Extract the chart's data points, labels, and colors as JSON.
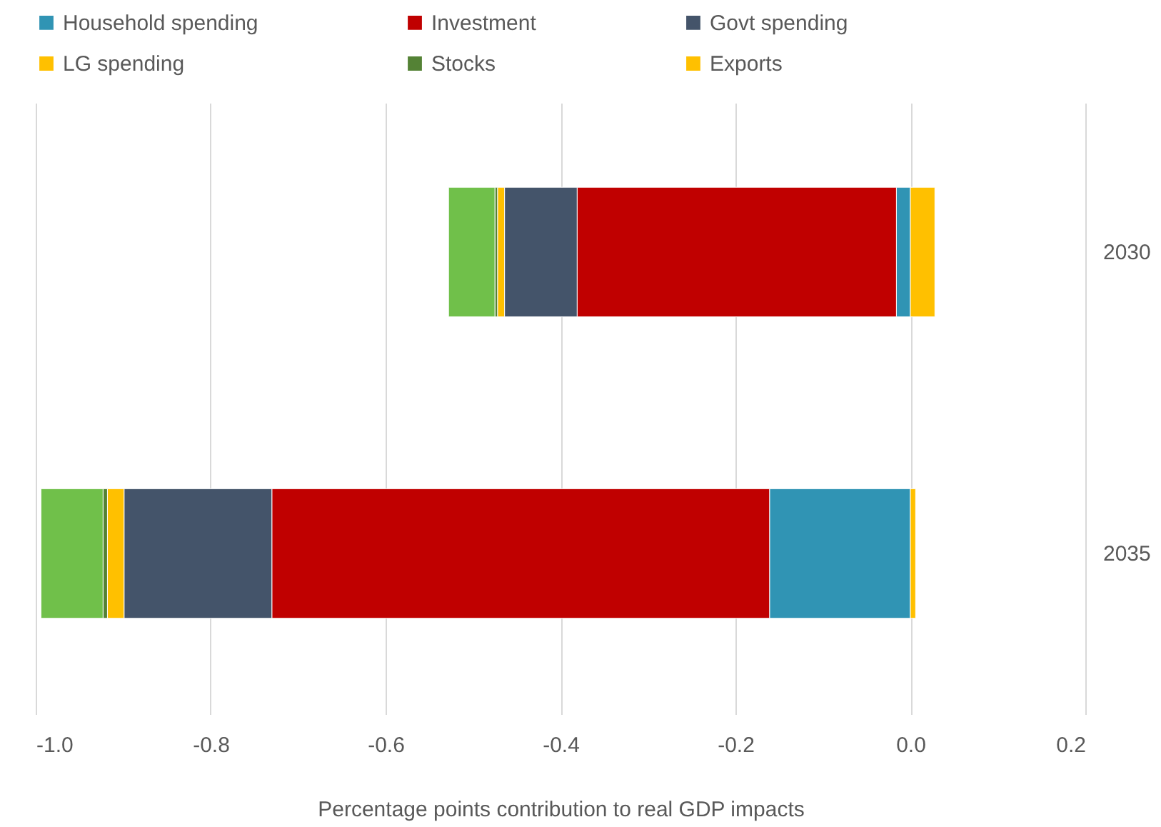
{
  "chart_data": {
    "type": "bar",
    "orientation": "horizontal",
    "stacked": true,
    "xlabel": "Percentage points contribution to real GDP impacts",
    "categories": [
      "2030",
      "2035"
    ],
    "series": [
      {
        "name": "Household spending",
        "color": "#3094b4",
        "values": [
          -0.016,
          -0.161
        ]
      },
      {
        "name": "Investment",
        "color": "#c00000",
        "values": [
          -0.365,
          -0.569
        ]
      },
      {
        "name": "Govt spending",
        "color": "#44546a",
        "values": [
          -0.083,
          -0.169
        ]
      },
      {
        "name": "LG spending",
        "color": "#ffc000",
        "values": [
          -0.008,
          -0.019
        ]
      },
      {
        "name": "Stocks",
        "color": "#548235",
        "values": [
          -0.003,
          -0.005
        ]
      },
      {
        "color": "#70c04a",
        "values": [
          -0.053,
          -0.071
        ]
      },
      {
        "name": "Exports",
        "color": "#ffc000",
        "values": [
          0.028,
          0.006
        ]
      }
    ],
    "xlim": [
      -1.0,
      0.2
    ],
    "xticks": [
      {
        "value": -1.0,
        "label": "-1.0"
      },
      {
        "value": -0.8,
        "label": "-0.8"
      },
      {
        "value": -0.6,
        "label": "-0.6"
      },
      {
        "value": -0.4,
        "label": "-0.4"
      },
      {
        "value": -0.2,
        "label": "-0.2"
      },
      {
        "value": 0,
        "label": "0.0"
      },
      {
        "value": 0.2,
        "label": "0.2"
      }
    ],
    "grid": "x",
    "legend": "top"
  }
}
